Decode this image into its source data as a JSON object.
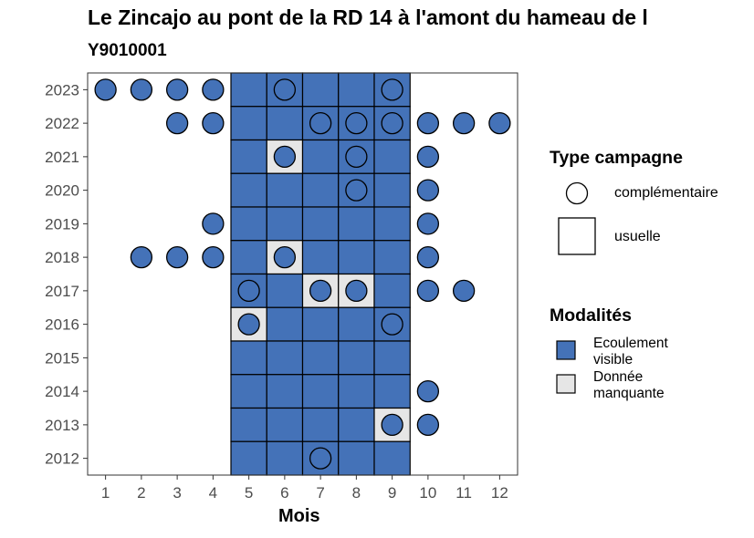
{
  "chart_data": {
    "type": "heatmap",
    "title": "Le Zincajo au pont de la RD 14 à l'amont du hameau de l",
    "subtitle": "Y9010001",
    "xlabel": "Mois",
    "ylabel": "",
    "x_ticks": [
      1,
      2,
      3,
      4,
      5,
      6,
      7,
      8,
      9,
      10,
      11,
      12
    ],
    "y_ticks": [
      2012,
      2013,
      2014,
      2015,
      2016,
      2017,
      2018,
      2019,
      2020,
      2021,
      2022,
      2023
    ],
    "tiles": [
      {
        "year": 2023,
        "month": 5,
        "modalite": "Ecoulement visible"
      },
      {
        "year": 2023,
        "month": 6,
        "modalite": "Ecoulement visible"
      },
      {
        "year": 2023,
        "month": 7,
        "modalite": "Ecoulement visible"
      },
      {
        "year": 2023,
        "month": 8,
        "modalite": "Ecoulement visible"
      },
      {
        "year": 2023,
        "month": 9,
        "modalite": "Ecoulement visible"
      },
      {
        "year": 2022,
        "month": 5,
        "modalite": "Ecoulement visible"
      },
      {
        "year": 2022,
        "month": 6,
        "modalite": "Ecoulement visible"
      },
      {
        "year": 2022,
        "month": 7,
        "modalite": "Ecoulement visible"
      },
      {
        "year": 2022,
        "month": 8,
        "modalite": "Ecoulement visible"
      },
      {
        "year": 2022,
        "month": 9,
        "modalite": "Ecoulement visible"
      },
      {
        "year": 2021,
        "month": 5,
        "modalite": "Ecoulement visible"
      },
      {
        "year": 2021,
        "month": 6,
        "modalite": "Donnée manquante"
      },
      {
        "year": 2021,
        "month": 7,
        "modalite": "Ecoulement visible"
      },
      {
        "year": 2021,
        "month": 8,
        "modalite": "Ecoulement visible"
      },
      {
        "year": 2021,
        "month": 9,
        "modalite": "Ecoulement visible"
      },
      {
        "year": 2020,
        "month": 5,
        "modalite": "Ecoulement visible"
      },
      {
        "year": 2020,
        "month": 6,
        "modalite": "Ecoulement visible"
      },
      {
        "year": 2020,
        "month": 7,
        "modalite": "Ecoulement visible"
      },
      {
        "year": 2020,
        "month": 8,
        "modalite": "Ecoulement visible"
      },
      {
        "year": 2020,
        "month": 9,
        "modalite": "Ecoulement visible"
      },
      {
        "year": 2019,
        "month": 5,
        "modalite": "Ecoulement visible"
      },
      {
        "year": 2019,
        "month": 6,
        "modalite": "Ecoulement visible"
      },
      {
        "year": 2019,
        "month": 7,
        "modalite": "Ecoulement visible"
      },
      {
        "year": 2019,
        "month": 8,
        "modalite": "Ecoulement visible"
      },
      {
        "year": 2019,
        "month": 9,
        "modalite": "Ecoulement visible"
      },
      {
        "year": 2018,
        "month": 5,
        "modalite": "Ecoulement visible"
      },
      {
        "year": 2018,
        "month": 6,
        "modalite": "Donnée manquante"
      },
      {
        "year": 2018,
        "month": 7,
        "modalite": "Ecoulement visible"
      },
      {
        "year": 2018,
        "month": 8,
        "modalite": "Ecoulement visible"
      },
      {
        "year": 2018,
        "month": 9,
        "modalite": "Ecoulement visible"
      },
      {
        "year": 2017,
        "month": 5,
        "modalite": "Ecoulement visible"
      },
      {
        "year": 2017,
        "month": 6,
        "modalite": "Ecoulement visible"
      },
      {
        "year": 2017,
        "month": 7,
        "modalite": "Donnée manquante"
      },
      {
        "year": 2017,
        "month": 8,
        "modalite": "Donnée manquante"
      },
      {
        "year": 2017,
        "month": 9,
        "modalite": "Ecoulement visible"
      },
      {
        "year": 2016,
        "month": 5,
        "modalite": "Donnée manquante"
      },
      {
        "year": 2016,
        "month": 6,
        "modalite": "Ecoulement visible"
      },
      {
        "year": 2016,
        "month": 7,
        "modalite": "Ecoulement visible"
      },
      {
        "year": 2016,
        "month": 8,
        "modalite": "Ecoulement visible"
      },
      {
        "year": 2016,
        "month": 9,
        "modalite": "Ecoulement visible"
      },
      {
        "year": 2015,
        "month": 5,
        "modalite": "Ecoulement visible"
      },
      {
        "year": 2015,
        "month": 6,
        "modalite": "Ecoulement visible"
      },
      {
        "year": 2015,
        "month": 7,
        "modalite": "Ecoulement visible"
      },
      {
        "year": 2015,
        "month": 8,
        "modalite": "Ecoulement visible"
      },
      {
        "year": 2015,
        "month": 9,
        "modalite": "Ecoulement visible"
      },
      {
        "year": 2014,
        "month": 5,
        "modalite": "Ecoulement visible"
      },
      {
        "year": 2014,
        "month": 6,
        "modalite": "Ecoulement visible"
      },
      {
        "year": 2014,
        "month": 7,
        "modalite": "Ecoulement visible"
      },
      {
        "year": 2014,
        "month": 8,
        "modalite": "Ecoulement visible"
      },
      {
        "year": 2014,
        "month": 9,
        "modalite": "Ecoulement visible"
      },
      {
        "year": 2013,
        "month": 5,
        "modalite": "Ecoulement visible"
      },
      {
        "year": 2013,
        "month": 6,
        "modalite": "Ecoulement visible"
      },
      {
        "year": 2013,
        "month": 7,
        "modalite": "Ecoulement visible"
      },
      {
        "year": 2013,
        "month": 8,
        "modalite": "Ecoulement visible"
      },
      {
        "year": 2013,
        "month": 9,
        "modalite": "Donnée manquante"
      },
      {
        "year": 2012,
        "month": 5,
        "modalite": "Ecoulement visible"
      },
      {
        "year": 2012,
        "month": 6,
        "modalite": "Ecoulement visible"
      },
      {
        "year": 2012,
        "month": 7,
        "modalite": "Ecoulement visible"
      },
      {
        "year": 2012,
        "month": 8,
        "modalite": "Ecoulement visible"
      },
      {
        "year": 2012,
        "month": 9,
        "modalite": "Ecoulement visible"
      }
    ],
    "points": [
      {
        "year": 2023,
        "month": 1,
        "modalite": "Ecoulement visible"
      },
      {
        "year": 2023,
        "month": 2,
        "modalite": "Ecoulement visible"
      },
      {
        "year": 2023,
        "month": 3,
        "modalite": "Ecoulement visible"
      },
      {
        "year": 2023,
        "month": 4,
        "modalite": "Ecoulement visible"
      },
      {
        "year": 2023,
        "month": 6,
        "modalite": "Ecoulement visible"
      },
      {
        "year": 2023,
        "month": 9,
        "modalite": "Ecoulement visible"
      },
      {
        "year": 2022,
        "month": 3,
        "modalite": "Ecoulement visible"
      },
      {
        "year": 2022,
        "month": 4,
        "modalite": "Ecoulement visible"
      },
      {
        "year": 2022,
        "month": 7,
        "modalite": "Ecoulement visible"
      },
      {
        "year": 2022,
        "month": 8,
        "modalite": "Ecoulement visible"
      },
      {
        "year": 2022,
        "month": 9,
        "modalite": "Ecoulement visible"
      },
      {
        "year": 2022,
        "month": 10,
        "modalite": "Ecoulement visible"
      },
      {
        "year": 2022,
        "month": 11,
        "modalite": "Ecoulement visible"
      },
      {
        "year": 2022,
        "month": 12,
        "modalite": "Ecoulement visible"
      },
      {
        "year": 2021,
        "month": 6,
        "modalite": "Ecoulement visible"
      },
      {
        "year": 2021,
        "month": 8,
        "modalite": "Ecoulement visible"
      },
      {
        "year": 2021,
        "month": 10,
        "modalite": "Ecoulement visible"
      },
      {
        "year": 2020,
        "month": 8,
        "modalite": "Ecoulement visible"
      },
      {
        "year": 2020,
        "month": 10,
        "modalite": "Ecoulement visible"
      },
      {
        "year": 2019,
        "month": 4,
        "modalite": "Ecoulement visible"
      },
      {
        "year": 2019,
        "month": 10,
        "modalite": "Ecoulement visible"
      },
      {
        "year": 2018,
        "month": 2,
        "modalite": "Ecoulement visible"
      },
      {
        "year": 2018,
        "month": 3,
        "modalite": "Ecoulement visible"
      },
      {
        "year": 2018,
        "month": 4,
        "modalite": "Ecoulement visible"
      },
      {
        "year": 2018,
        "month": 6,
        "modalite": "Ecoulement visible"
      },
      {
        "year": 2018,
        "month": 10,
        "modalite": "Ecoulement visible"
      },
      {
        "year": 2017,
        "month": 5,
        "modalite": "Ecoulement visible"
      },
      {
        "year": 2017,
        "month": 7,
        "modalite": "Ecoulement visible"
      },
      {
        "year": 2017,
        "month": 8,
        "modalite": "Ecoulement visible"
      },
      {
        "year": 2017,
        "month": 10,
        "modalite": "Ecoulement visible"
      },
      {
        "year": 2017,
        "month": 11,
        "modalite": "Ecoulement visible"
      },
      {
        "year": 2016,
        "month": 5,
        "modalite": "Ecoulement visible"
      },
      {
        "year": 2016,
        "month": 9,
        "modalite": "Ecoulement visible"
      },
      {
        "year": 2014,
        "month": 10,
        "modalite": "Ecoulement visible"
      },
      {
        "year": 2013,
        "month": 9,
        "modalite": "Ecoulement visible"
      },
      {
        "year": 2013,
        "month": 10,
        "modalite": "Ecoulement visible"
      },
      {
        "year": 2012,
        "month": 7,
        "modalite": "Ecoulement visible"
      }
    ],
    "grid": false,
    "legend_placement": "right",
    "legend": {
      "type_title": "Type campagne",
      "type_items": [
        "complémentaire",
        "usuelle"
      ],
      "modalites_title": "Modalités",
      "modalites_items": [
        "Ecoulement visible",
        "Donnée manquante"
      ]
    },
    "colors": {
      "Ecoulement visible": "#4472b8",
      "Donnée manquante": "#e6e6e6"
    }
  }
}
